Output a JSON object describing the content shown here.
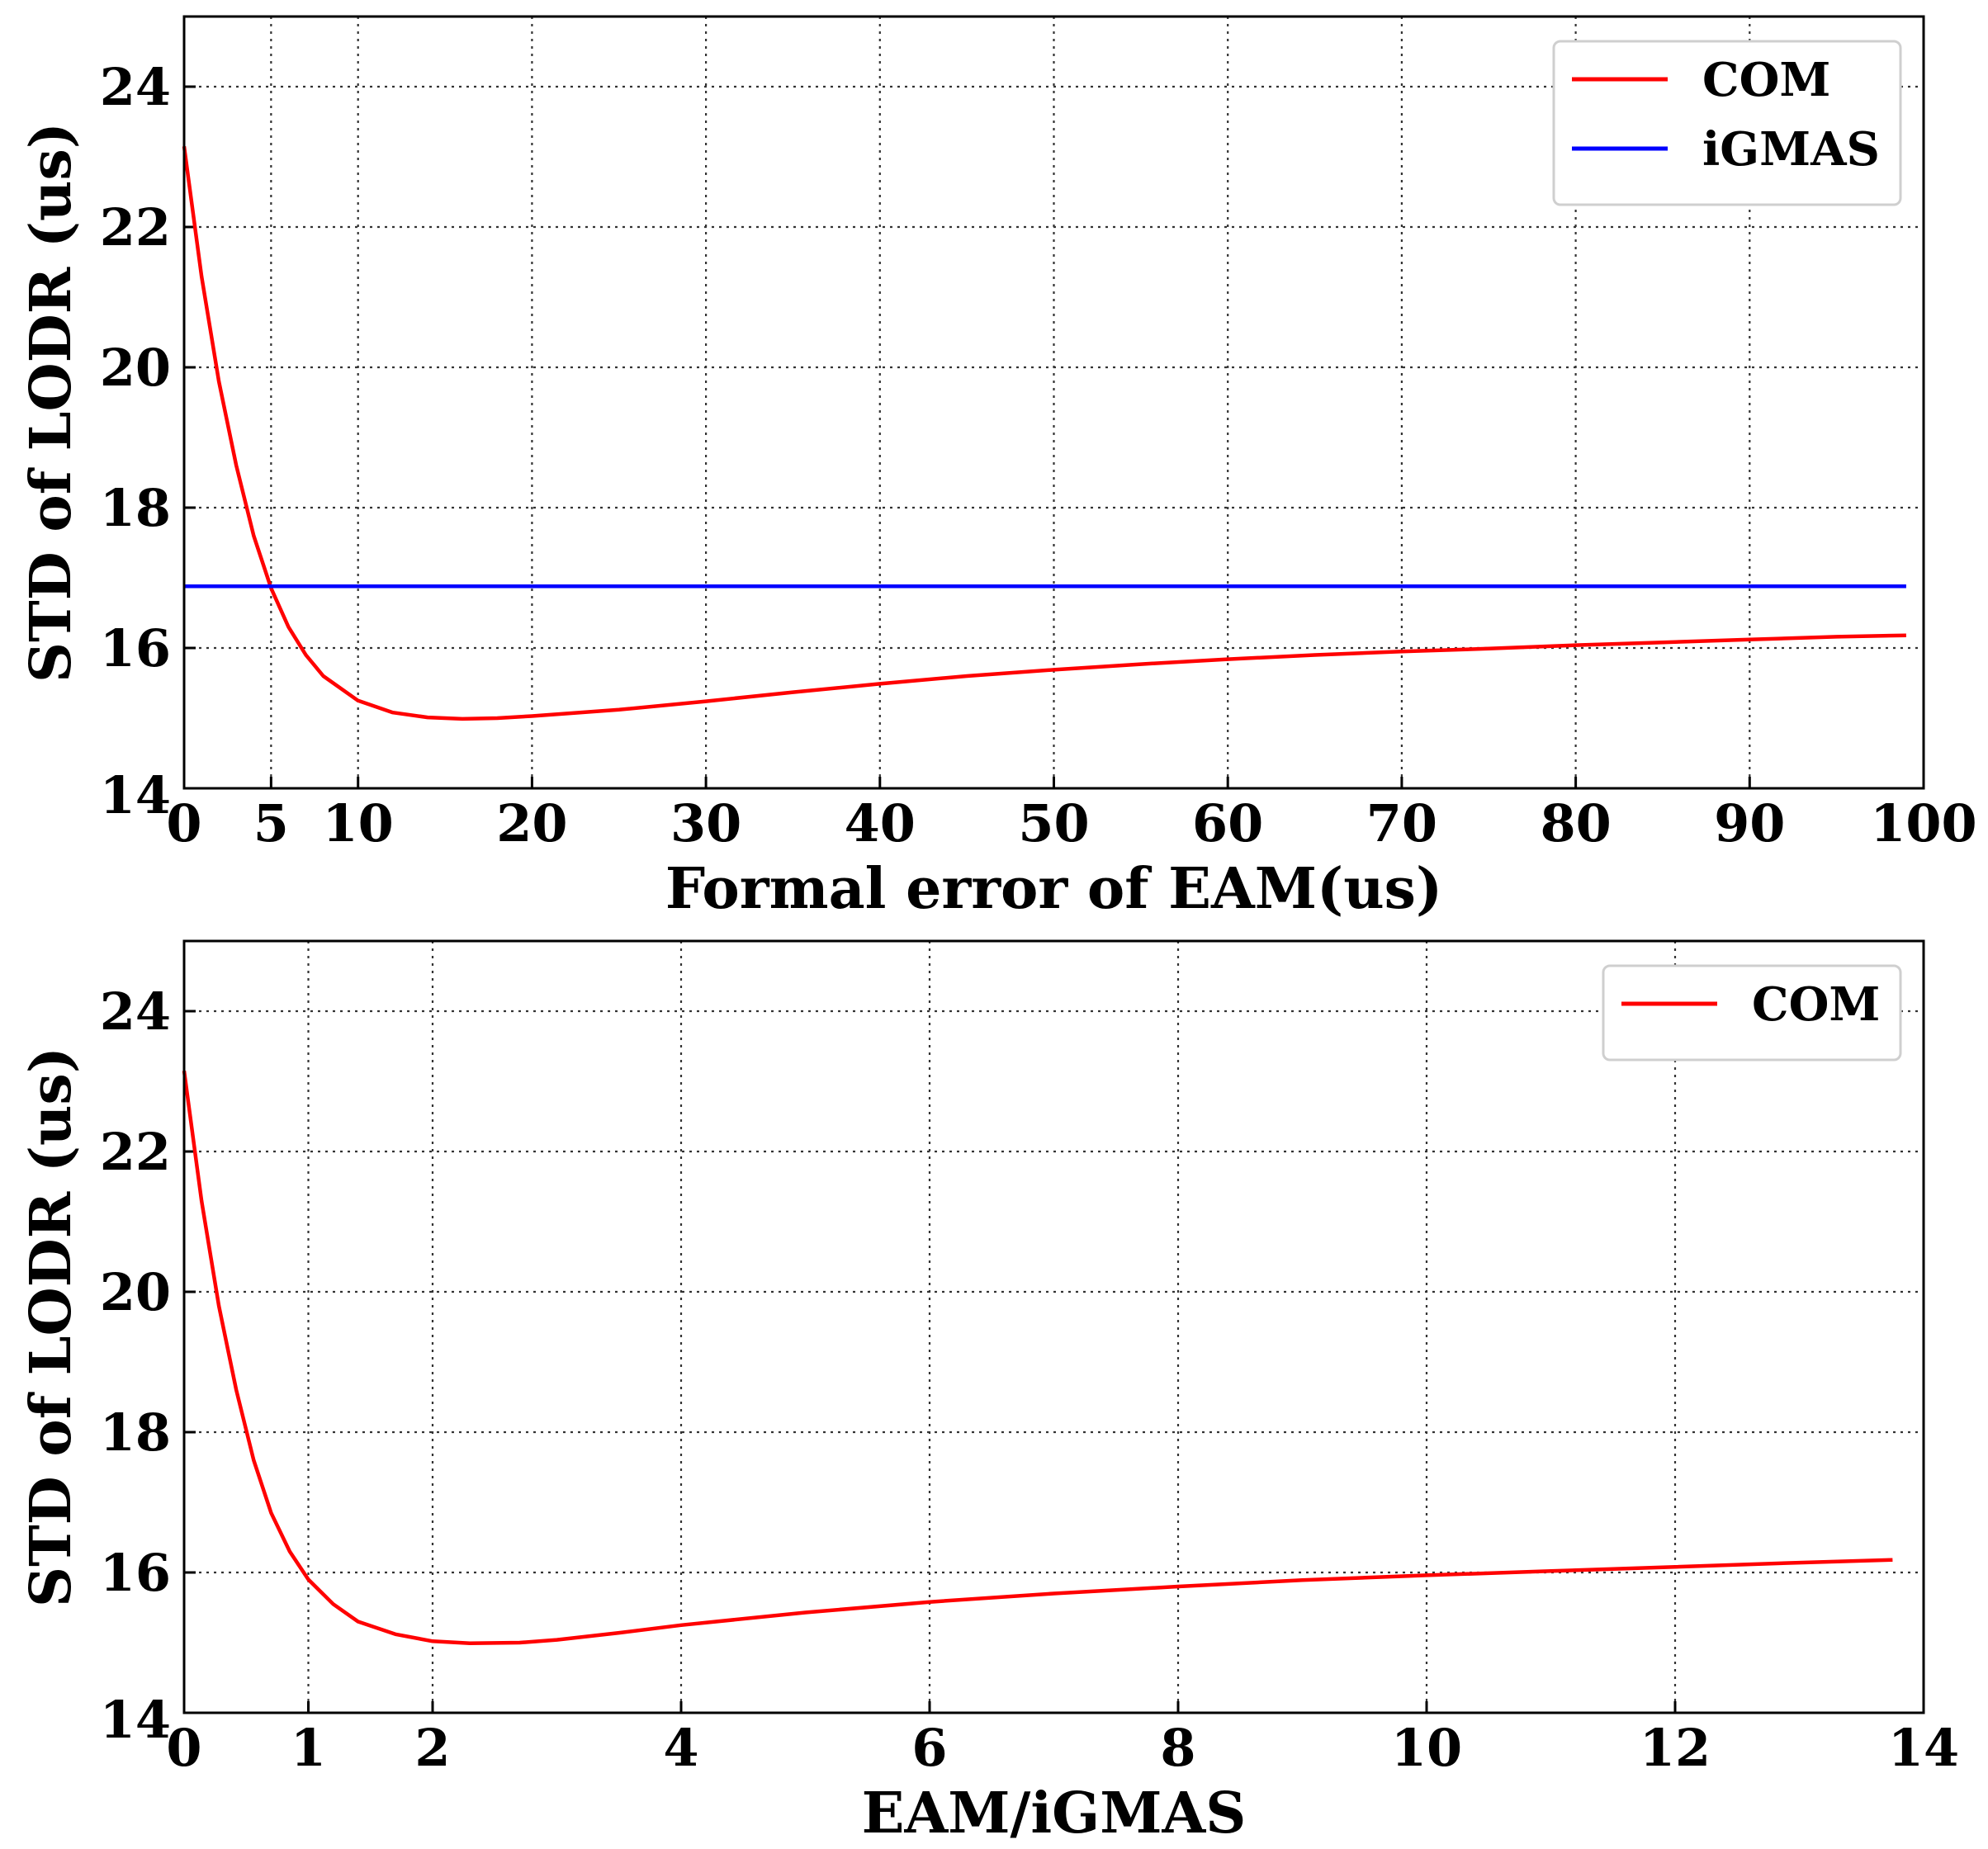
{
  "chart_data": [
    {
      "type": "line",
      "xlabel": "Formal error of EAM(us)",
      "ylabel": "STD of LODR (us)",
      "xlim": [
        0,
        100
      ],
      "ylim": [
        14,
        25
      ],
      "x_ticks": [
        0,
        5,
        10,
        20,
        30,
        40,
        50,
        60,
        70,
        80,
        90,
        100
      ],
      "y_ticks": [
        14,
        16,
        18,
        20,
        22,
        24
      ],
      "grid": true,
      "legend": "top-right",
      "series": [
        {
          "name": "COM",
          "color": "#ff0000",
          "x": [
            0,
            1,
            2,
            3,
            4,
            5,
            6,
            7,
            8,
            10,
            12,
            14,
            16,
            18,
            20,
            25,
            30,
            35,
            40,
            45,
            50,
            55,
            60,
            65,
            70,
            75,
            80,
            85,
            90,
            95,
            99
          ],
          "y": [
            23.15,
            21.3,
            19.8,
            18.6,
            17.6,
            16.85,
            16.3,
            15.9,
            15.6,
            15.25,
            15.08,
            15.01,
            14.99,
            15.0,
            15.03,
            15.12,
            15.24,
            15.37,
            15.49,
            15.6,
            15.69,
            15.77,
            15.84,
            15.9,
            15.95,
            15.99,
            16.04,
            16.08,
            16.12,
            16.16,
            16.18
          ]
        },
        {
          "name": "iGMAS",
          "color": "#0000ff",
          "x": [
            0,
            99
          ],
          "y": [
            16.88,
            16.88
          ]
        }
      ]
    },
    {
      "type": "line",
      "xlabel": "EAM/iGMAS",
      "ylabel": "STD of LODR (us)",
      "xlim": [
        0,
        14
      ],
      "ylim": [
        14,
        25
      ],
      "x_ticks": [
        0,
        1,
        2,
        4,
        6,
        8,
        10,
        12,
        14
      ],
      "y_ticks": [
        14,
        16,
        18,
        20,
        22,
        24
      ],
      "grid": true,
      "legend": "top-right",
      "series": [
        {
          "name": "COM",
          "color": "#ff0000",
          "x": [
            0,
            0.14,
            0.28,
            0.42,
            0.56,
            0.7,
            0.85,
            1.0,
            1.2,
            1.4,
            1.7,
            2.0,
            2.3,
            2.7,
            3.0,
            3.5,
            4.0,
            5.0,
            6.0,
            7.0,
            8.0,
            9.0,
            10.0,
            11.0,
            12.0,
            13.0,
            13.75
          ],
          "y": [
            23.15,
            21.3,
            19.8,
            18.6,
            17.6,
            16.85,
            16.3,
            15.9,
            15.55,
            15.3,
            15.12,
            15.02,
            14.99,
            15.0,
            15.04,
            15.14,
            15.25,
            15.43,
            15.58,
            15.7,
            15.8,
            15.89,
            15.96,
            16.02,
            16.08,
            16.14,
            16.18
          ]
        }
      ]
    }
  ]
}
